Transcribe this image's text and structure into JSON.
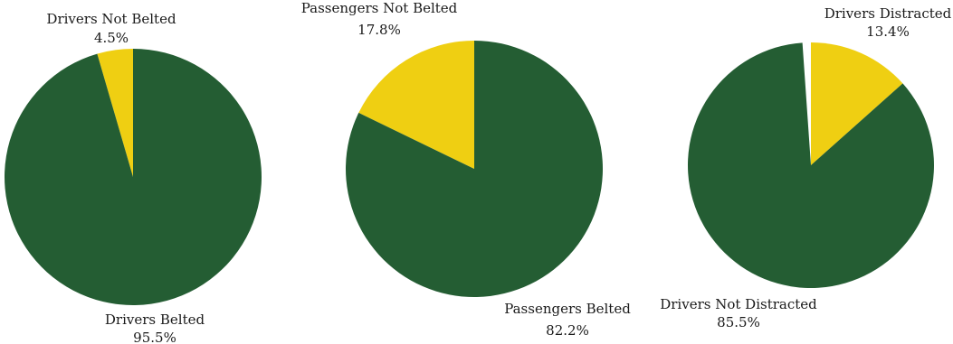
{
  "colors": {
    "main": "#245d33",
    "accent": "#efcf12",
    "gap": "#ffffff"
  },
  "chart_data": [
    {
      "type": "pie",
      "slices": [
        {
          "label": "Drivers Not Belted",
          "value_label": "4.5%",
          "value": 4.5,
          "color": "#efcf12"
        },
        {
          "label": "Drivers Belted",
          "value_label": "95.5%",
          "value": 95.5,
          "color": "#245d33"
        }
      ]
    },
    {
      "type": "pie",
      "slices": [
        {
          "label": "Passengers Not Belted",
          "value_label": "17.8%",
          "value": 17.8,
          "color": "#efcf12"
        },
        {
          "label": "Passengers Belted",
          "value_label": "82.2%",
          "value": 82.2,
          "color": "#245d33"
        }
      ]
    },
    {
      "type": "pie",
      "slices": [
        {
          "label": "Drivers Distracted",
          "value_label": "13.4%",
          "value": 13.4,
          "color": "#efcf12"
        },
        {
          "label": "Drivers Not Distracted",
          "value_label": "85.5%",
          "value": 85.5,
          "color": "#245d33"
        }
      ]
    }
  ]
}
